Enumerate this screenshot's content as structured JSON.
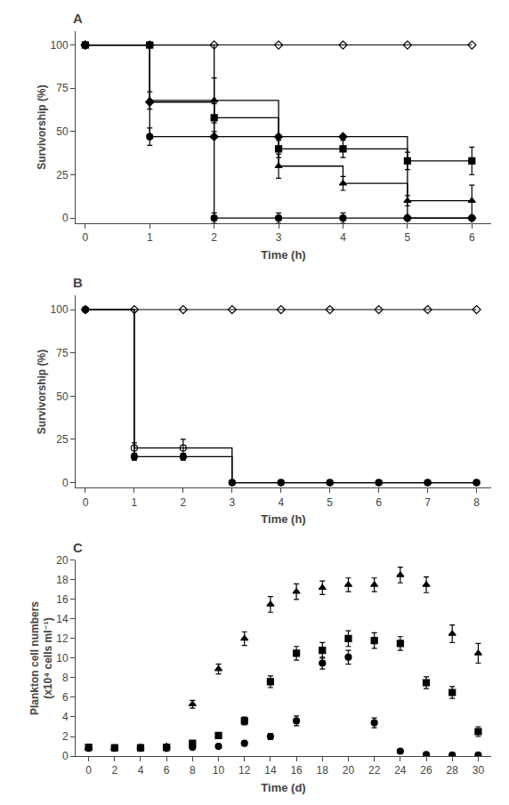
{
  "chart_data": [
    {
      "type": "line",
      "title": "A",
      "xlabel": "Time (h)",
      "ylabel": "Survivorship (%)",
      "xlim": [
        -0.15,
        6.3
      ],
      "ylim": [
        -3,
        108
      ],
      "xticks": [
        0,
        1,
        2,
        3,
        4,
        5,
        6
      ],
      "yticks": [
        0,
        25,
        50,
        75,
        100
      ],
      "grid": false,
      "x": [
        0,
        1,
        2,
        3,
        4,
        5,
        6
      ],
      "series": [
        {
          "type": "line",
          "color": "#000000",
          "marker": "diamond-open",
          "values": [
            100,
            100,
            100,
            100,
            100,
            100,
            100
          ]
        },
        {
          "type": "step",
          "color": "#000000",
          "marker": "diamond",
          "values": [
            100,
            67,
            47,
            47,
            47,
            0,
            0
          ],
          "yerr": [
            0,
            0,
            0,
            0,
            0,
            0,
            0
          ]
        },
        {
          "type": "step",
          "color": "#000000",
          "marker": "circle",
          "values": [
            100,
            47,
            0,
            0,
            0,
            0,
            0
          ],
          "yerr": [
            0,
            5,
            3,
            3,
            3,
            0,
            0
          ]
        },
        {
          "type": "step",
          "color": "#000000",
          "marker": "triangle-up",
          "values": [
            100,
            68,
            68,
            30,
            20,
            10,
            10
          ],
          "yerr": [
            0,
            5,
            13,
            7,
            4,
            3,
            9
          ]
        },
        {
          "type": "step",
          "color": "#000000",
          "marker": "square",
          "values": [
            100,
            100,
            58,
            40,
            40,
            33,
            33
          ],
          "yerr": [
            0,
            0,
            8,
            5,
            5,
            5,
            8
          ]
        }
      ]
    },
    {
      "type": "line",
      "title": "B",
      "xlabel": "Time (h)",
      "ylabel": "Survivorship (%)",
      "xlim": [
        -0.2,
        8.3
      ],
      "ylim": [
        -3,
        108
      ],
      "xticks": [
        0,
        1,
        2,
        3,
        4,
        5,
        6,
        7,
        8
      ],
      "yticks": [
        0,
        25,
        50,
        75,
        100
      ],
      "grid": false,
      "x": [
        0,
        1,
        2,
        3,
        4,
        5,
        6,
        7,
        8
      ],
      "series": [
        {
          "type": "line",
          "color": "#000000",
          "marker": "diamond-open",
          "values": [
            100,
            100,
            100,
            100,
            100,
            100,
            100,
            100,
            100
          ]
        },
        {
          "type": "step",
          "color": "#000000",
          "marker": "circle-open",
          "values": [
            100,
            20,
            20,
            0,
            0,
            0,
            0,
            0,
            0
          ],
          "yerr": [
            0,
            3,
            5,
            0,
            0,
            0,
            0,
            0,
            0
          ]
        },
        {
          "type": "step",
          "color": "#000000",
          "marker": "circle",
          "values": [
            100,
            15,
            15,
            0,
            0,
            0,
            0,
            0,
            0
          ],
          "yerr": [
            0,
            2,
            2,
            0,
            0,
            0,
            0,
            0,
            0
          ]
        }
      ]
    },
    {
      "type": "scatter",
      "title": "C",
      "xlabel": "Time (d)",
      "ylabel": "Plankton cell numbers\n(x10⁴ cells ml⁻¹)",
      "xlim": [
        -1,
        31
      ],
      "ylim": [
        0,
        20
      ],
      "xticks": [
        0,
        2,
        4,
        6,
        8,
        10,
        12,
        14,
        16,
        18,
        20,
        22,
        24,
        26,
        28,
        30
      ],
      "yticks": [
        0,
        2,
        4,
        6,
        8,
        10,
        12,
        14,
        16,
        18,
        20
      ],
      "grid": false,
      "x": [
        0,
        2,
        4,
        6,
        8,
        10,
        12,
        14,
        16,
        18,
        20,
        22,
        24,
        26,
        28,
        30
      ],
      "series": [
        {
          "color": "#000000",
          "marker": "circle",
          "values": [
            0.8,
            0.8,
            0.8,
            0.8,
            0.9,
            1.0,
            1.3,
            2.0,
            3.6,
            9.5,
            10.1,
            3.4,
            0.5,
            0.15,
            0.1,
            0.1
          ],
          "yerr": [
            0.1,
            0.1,
            0.1,
            0.1,
            0.1,
            0.15,
            0.2,
            0.3,
            0.5,
            0.6,
            0.7,
            0.5,
            0.1,
            0.05,
            0.05,
            0.05
          ]
        },
        {
          "color": "#000000",
          "marker": "square",
          "values": [
            0.9,
            0.85,
            0.85,
            0.9,
            1.3,
            2.1,
            3.6,
            7.6,
            10.5,
            10.8,
            12.0,
            11.8,
            11.5,
            7.5,
            6.5,
            2.5
          ],
          "yerr": [
            0.1,
            0.1,
            0.1,
            0.1,
            0.2,
            0.3,
            0.4,
            0.6,
            0.7,
            0.8,
            0.8,
            0.8,
            0.7,
            0.6,
            0.6,
            0.5
          ]
        },
        {
          "color": "#000000",
          "marker": "triangle-up",
          "values": [
            0.8,
            0.8,
            0.9,
            1.0,
            5.3,
            8.9,
            12.0,
            15.5,
            16.8,
            17.2,
            17.5,
            17.5,
            18.5,
            17.5,
            12.5,
            10.5
          ],
          "yerr": [
            0.1,
            0.1,
            0.1,
            0.2,
            0.4,
            0.5,
            0.7,
            0.8,
            0.8,
            0.7,
            0.7,
            0.7,
            0.8,
            0.8,
            0.9,
            1.0
          ]
        }
      ]
    }
  ]
}
